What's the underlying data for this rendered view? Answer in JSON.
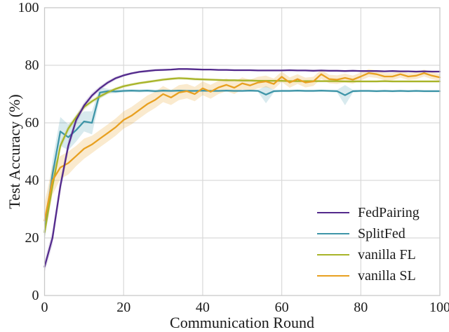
{
  "chart_data": {
    "type": "line",
    "title": "",
    "xlabel": "Communication Round",
    "ylabel": "Test Accuracy (%)",
    "xlim": [
      0,
      100
    ],
    "ylim": [
      0,
      100
    ],
    "xticks": [
      0,
      20,
      40,
      60,
      80,
      100
    ],
    "yticks": [
      0,
      20,
      40,
      60,
      80,
      100
    ],
    "grid": true,
    "legend_position": "lower right",
    "grid_color": "#d9d9d9",
    "spine_color": "#c9c9c9",
    "text_color": "#1a1a1a",
    "x": [
      0,
      2,
      4,
      6,
      8,
      10,
      12,
      14,
      16,
      18,
      20,
      22,
      24,
      26,
      28,
      30,
      32,
      34,
      36,
      38,
      40,
      42,
      44,
      46,
      48,
      50,
      52,
      54,
      56,
      58,
      60,
      62,
      64,
      66,
      68,
      70,
      72,
      74,
      76,
      78,
      80,
      82,
      84,
      86,
      88,
      90,
      92,
      94,
      96,
      98,
      100
    ],
    "series": [
      {
        "name": "FedPairing",
        "color": "#532a8c",
        "band_opacity": 0.15,
        "values": [
          10,
          20,
          38,
          52,
          61,
          66,
          69.5,
          72,
          74,
          75.5,
          76.5,
          77.2,
          77.7,
          78,
          78.3,
          78.4,
          78.5,
          78.7,
          78.7,
          78.6,
          78.5,
          78.5,
          78.4,
          78.4,
          78.3,
          78.3,
          78.3,
          78.2,
          78.2,
          78.2,
          78.2,
          78.3,
          78.2,
          78.2,
          78.1,
          78.2,
          78.1,
          78.1,
          78,
          78.1,
          78,
          78,
          78,
          77.9,
          78,
          77.9,
          77.9,
          77.8,
          77.9,
          77.8,
          77.8
        ],
        "band": [
          2,
          2.5,
          2.5,
          2,
          1.5,
          1.2,
          1,
          0.8,
          0.7,
          0.6,
          0.5,
          0.4,
          0.4,
          0.4,
          0.4,
          0.4,
          0.3,
          0.3,
          0.3,
          0.3,
          0.3,
          0.3,
          0.3,
          0.3,
          0.3,
          0.3,
          0.3,
          0.3,
          0.3,
          0.3,
          0.3,
          0.3,
          0.3,
          0.3,
          0.3,
          0.3,
          0.3,
          0.3,
          0.3,
          0.3,
          0.3,
          0.3,
          0.3,
          0.3,
          0.3,
          0.3,
          0.3,
          0.3,
          0.3,
          0.3,
          0.3
        ]
      },
      {
        "name": "SplitFed",
        "color": "#3e95a8",
        "band_opacity": 0.2,
        "values": [
          22,
          42,
          57,
          55,
          57.5,
          60.5,
          60,
          70.5,
          71,
          70.9,
          71.1,
          71.2,
          71.1,
          71.2,
          71,
          71.2,
          71.1,
          71.2,
          71.1,
          71.1,
          71.2,
          71.1,
          71.1,
          71.2,
          71.1,
          71.1,
          71.2,
          71.1,
          69.8,
          71,
          71.1,
          71.1,
          71.2,
          71.1,
          71.1,
          71.2,
          71.1,
          71,
          69.6,
          71,
          71.1,
          71.1,
          71,
          71.1,
          71,
          71.1,
          71,
          71.1,
          71,
          71,
          71
        ],
        "band": [
          3,
          5,
          5,
          4.5,
          4,
          3.5,
          4,
          2,
          0.8,
          0.6,
          0.5,
          0.5,
          0.5,
          0.5,
          0.5,
          0.5,
          0.4,
          0.4,
          0.4,
          0.4,
          0.4,
          0.4,
          0.4,
          0.4,
          0.4,
          0.4,
          0.4,
          0.4,
          3,
          0.5,
          0.4,
          0.4,
          0.4,
          0.4,
          0.4,
          0.4,
          0.4,
          0.5,
          3.5,
          0.5,
          0.4,
          0.4,
          0.4,
          0.4,
          0.4,
          0.4,
          0.4,
          0.4,
          0.4,
          0.4,
          0.4
        ]
      },
      {
        "name": "vanilla FL",
        "color": "#a8b428",
        "band_opacity": 0.18,
        "values": [
          22,
          38,
          52,
          58,
          62,
          65.5,
          67.5,
          69.2,
          70.6,
          71.8,
          72.7,
          73.3,
          73.8,
          74.2,
          74.6,
          75,
          75.3,
          75.5,
          75.4,
          75.2,
          75.1,
          75,
          74.9,
          74.8,
          74.8,
          74.7,
          74.7,
          74.6,
          74.6,
          74.6,
          74.6,
          74.5,
          74.5,
          74.5,
          74.5,
          74.5,
          74.5,
          74.5,
          74.4,
          74.4,
          74.4,
          74.4,
          74.4,
          74.5,
          74.4,
          74.4,
          74.4,
          74.4,
          74.4,
          74.4,
          74.4
        ],
        "band": [
          2,
          2,
          1.5,
          1.2,
          1,
          1,
          0.8,
          0.8,
          0.7,
          0.6,
          0.6,
          0.5,
          0.5,
          0.5,
          0.5,
          0.5,
          0.5,
          0.5,
          0.5,
          0.5,
          0.5,
          0.4,
          0.4,
          0.4,
          0.4,
          0.4,
          0.4,
          0.4,
          0.4,
          0.4,
          0.4,
          0.4,
          0.4,
          0.4,
          0.4,
          0.4,
          0.4,
          0.4,
          0.4,
          0.4,
          0.4,
          0.4,
          0.4,
          0.4,
          0.4,
          0.4,
          0.4,
          0.4,
          0.4,
          0.4,
          0.4
        ]
      },
      {
        "name": "vanilla SL",
        "color": "#e8a020",
        "band_opacity": 0.22,
        "values": [
          26,
          40,
          44.5,
          46,
          48.5,
          51,
          52.5,
          54.5,
          56.5,
          58.5,
          61,
          62.5,
          64.5,
          66.5,
          68,
          70,
          68.8,
          70.5,
          71,
          70,
          72,
          70.8,
          72.3,
          73.2,
          72.2,
          73.7,
          73,
          74,
          74.4,
          73.5,
          76,
          74,
          75.2,
          74,
          74.4,
          76.9,
          75.2,
          75,
          75.6,
          75,
          76.1,
          77.3,
          76.9,
          76.1,
          76.1,
          76.9,
          76.1,
          76.4,
          77.3,
          76.4,
          75.8
        ],
        "band": [
          6,
          5,
          4,
          4,
          3.5,
          3.5,
          3,
          3,
          3,
          3,
          3,
          3,
          3,
          3,
          2.8,
          2.8,
          2.6,
          2.6,
          2.5,
          2.5,
          2.4,
          2.4,
          2.3,
          2.2,
          2.2,
          2.1,
          2,
          2,
          2,
          1.9,
          1.8,
          1.8,
          1.7,
          1.7,
          1.6,
          1.6,
          1.5,
          1.5,
          1.5,
          1.4,
          1.4,
          1.4,
          1.3,
          1.3,
          1.3,
          1.2,
          1.2,
          1.2,
          1.2,
          1.2,
          1.2
        ]
      }
    ]
  },
  "legend": {
    "items": [
      {
        "label": "FedPairing"
      },
      {
        "label": "SplitFed"
      },
      {
        "label": "vanilla FL"
      },
      {
        "label": "vanilla SL"
      }
    ]
  }
}
